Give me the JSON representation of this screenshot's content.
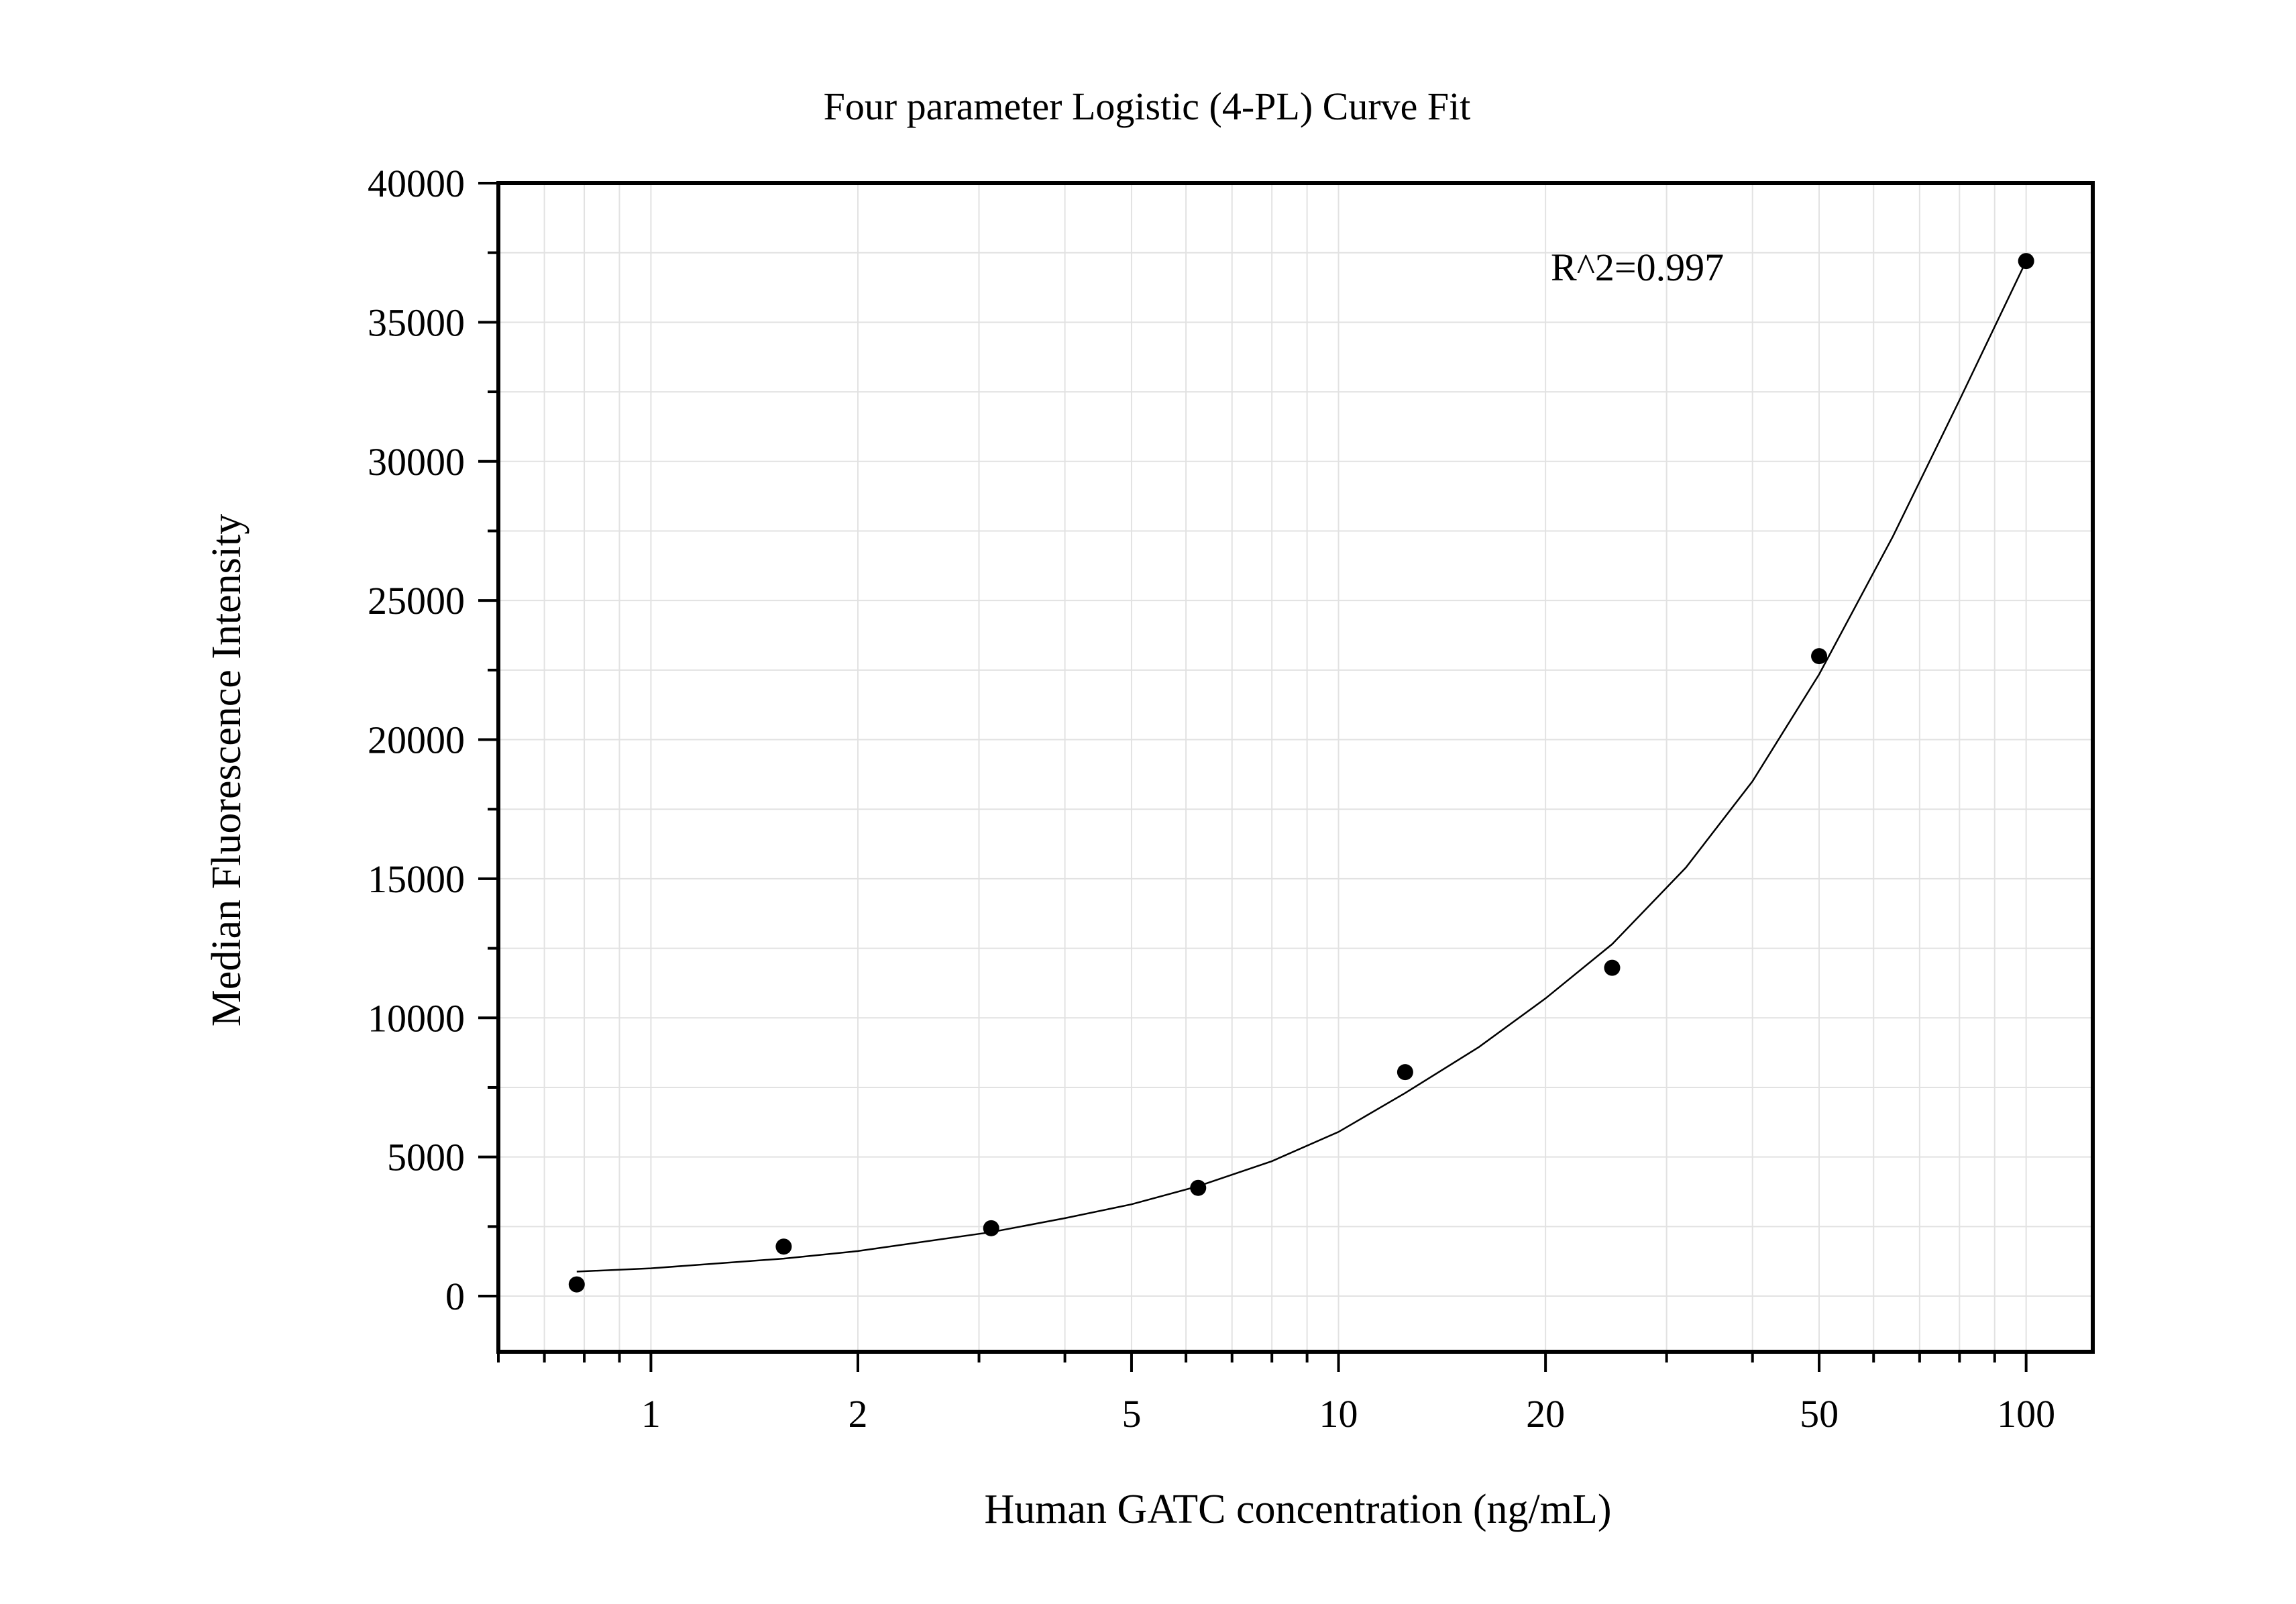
{
  "chart_data": {
    "type": "scatter",
    "title": "Four parameter Logistic (4-PL) Curve Fit",
    "xlabel": "Human GATC concentration (ng/mL)",
    "ylabel": "Median Fluorescence Intensity",
    "x_scale": "log",
    "xlim": [
      0.6,
      125
    ],
    "ylim": [
      -2000,
      40000
    ],
    "x_ticks": [
      1,
      2,
      5,
      10,
      20,
      50,
      100
    ],
    "x_tick_labels": [
      "1",
      "2",
      "5",
      "10",
      "20",
      "50",
      "100"
    ],
    "y_ticks": [
      0,
      5000,
      10000,
      15000,
      20000,
      25000,
      30000,
      35000,
      40000
    ],
    "y_tick_labels": [
      "0",
      "5000",
      "10000",
      "15000",
      "20000",
      "25000",
      "30000",
      "35000",
      "40000"
    ],
    "grid": true,
    "annotation": "R^2=0.997",
    "series": [
      {
        "type": "scatter",
        "x": [
          0.78,
          1.56,
          3.125,
          6.25,
          12.5,
          25,
          50,
          100
        ],
        "y": [
          420,
          1780,
          2440,
          3890,
          8050,
          11800,
          23000,
          37200
        ]
      },
      {
        "type": "line",
        "x": [
          0.78,
          1,
          1.56,
          2,
          3.125,
          4,
          5,
          6.25,
          8,
          10,
          12.5,
          16,
          20,
          25,
          32,
          40,
          50,
          64,
          80,
          100
        ],
        "y": [
          880,
          1000,
          1350,
          1620,
          2300,
          2800,
          3300,
          3950,
          4850,
          5900,
          7300,
          8950,
          10700,
          12650,
          15400,
          18500,
          22350,
          27300,
          32200,
          37200
        ]
      }
    ]
  }
}
